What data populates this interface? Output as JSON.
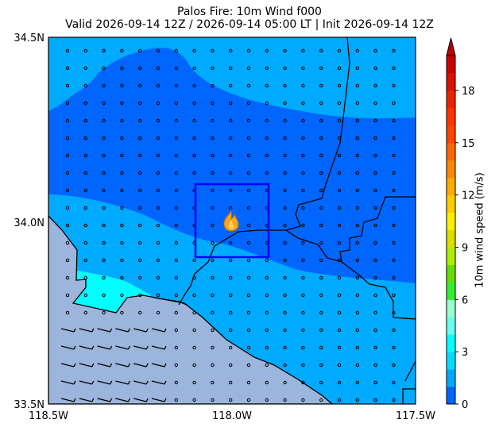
{
  "title": {
    "line1": "Palos Fire: 10m Wind f000",
    "line2": "Valid 2026-09-14 12Z / 2026-09-14 05:00 LT | Init 2026-09-14 12Z"
  },
  "map": {
    "lat_ticks": [
      "34.5N",
      "34.0N",
      "33.5N"
    ],
    "lon_ticks": [
      "118.5W",
      "118.0W",
      "117.5W"
    ],
    "lat_range": [
      33.5,
      34.5
    ],
    "lon_range": [
      -118.5,
      -117.5
    ],
    "fire_marker_icon": "fire-icon",
    "focus_box_color": "#0000ff"
  },
  "colorbar": {
    "label": "10m wind speed (m/s)",
    "ticks": [
      "0",
      "3",
      "6",
      "9",
      "12",
      "15",
      "18"
    ],
    "range": [
      0,
      20
    ],
    "extend": "max"
  },
  "colors": {
    "ocean": "#9bb5dc",
    "wind_0_1": "#0066ff",
    "wind_1_2": "#00aaff",
    "wind_2_3": "#00ddff",
    "wind_3_4": "#00ffff"
  }
}
